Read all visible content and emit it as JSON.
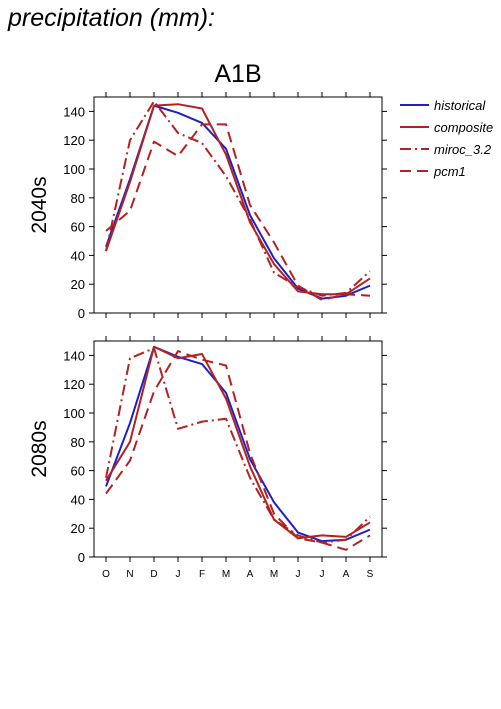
{
  "header": {
    "title": "precipitation (mm):"
  },
  "colors": {
    "historical": "#1f1fc8",
    "model": "#b22222",
    "axis": "#000000"
  },
  "chart_data": [
    {
      "type": "line",
      "title": "A1B",
      "ylabel": "2040s",
      "categories": [
        "O",
        "N",
        "D",
        "J",
        "F",
        "M",
        "A",
        "M",
        "J",
        "J",
        "A",
        "S"
      ],
      "ylim": [
        0,
        150
      ],
      "yticks": [
        0,
        20,
        40,
        60,
        80,
        100,
        120,
        140
      ],
      "legend_position": "right",
      "series": [
        {
          "name": "historical",
          "color": "#1f1fc8",
          "dash": "solid",
          "values": [
            46,
            93,
            144,
            139,
            132,
            114,
            68,
            38,
            17,
            10,
            12,
            19
          ]
        },
        {
          "name": "composite",
          "color": "#b22222",
          "dash": "solid",
          "values": [
            43,
            91,
            144,
            145,
            142,
            110,
            63,
            34,
            15,
            13,
            13,
            24
          ]
        },
        {
          "name": "miroc_3.2",
          "color": "#b22222",
          "dash": "dashdot",
          "values": [
            43,
            120,
            147,
            125,
            118,
            95,
            65,
            28,
            18,
            12,
            14,
            29
          ]
        },
        {
          "name": "pcm1",
          "color": "#b22222",
          "dash": "dashed",
          "values": [
            57,
            71,
            119,
            109,
            131,
            131,
            75,
            49,
            19,
            9,
            13,
            12
          ]
        }
      ]
    },
    {
      "type": "line",
      "title": "",
      "ylabel": "2080s",
      "categories": [
        "O",
        "N",
        "D",
        "J",
        "F",
        "M",
        "A",
        "M",
        "J",
        "J",
        "A",
        "S"
      ],
      "ylim": [
        0,
        150
      ],
      "yticks": [
        0,
        20,
        40,
        60,
        80,
        100,
        120,
        140
      ],
      "series": [
        {
          "name": "historical",
          "color": "#1f1fc8",
          "dash": "solid",
          "values": [
            49,
            93,
            146,
            139,
            134,
            114,
            68,
            38,
            17,
            11,
            12,
            19
          ]
        },
        {
          "name": "composite",
          "color": "#b22222",
          "dash": "solid",
          "values": [
            53,
            80,
            146,
            138,
            141,
            110,
            63,
            26,
            13,
            15,
            14,
            24
          ]
        },
        {
          "name": "miroc_3.2",
          "color": "#b22222",
          "dash": "dashdot",
          "values": [
            55,
            138,
            145,
            89,
            94,
            96,
            55,
            26,
            15,
            10,
            12,
            28
          ]
        },
        {
          "name": "pcm1",
          "color": "#b22222",
          "dash": "dashed",
          "values": [
            44,
            67,
            115,
            143,
            137,
            133,
            72,
            30,
            13,
            10,
            5,
            15
          ]
        }
      ]
    }
  ]
}
